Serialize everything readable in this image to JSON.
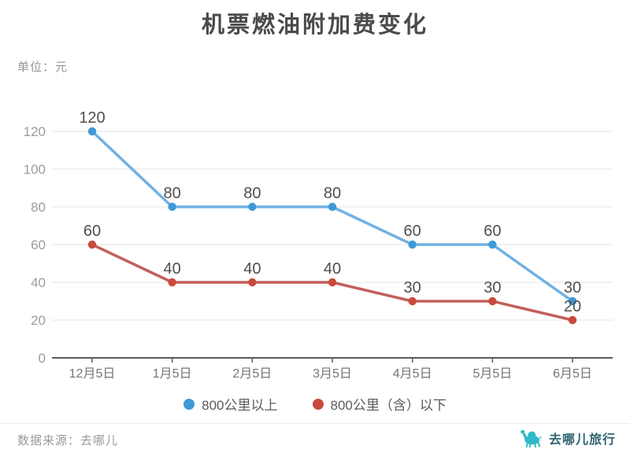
{
  "title": "机票燃油附加费变化",
  "unit_label": "单位：元",
  "footer": {
    "source_label": "数据来源：去哪儿",
    "brand_label": "去哪儿旅行",
    "brand_icon": "camel-icon"
  },
  "colors": {
    "title_text": "#4a4a4a",
    "grid_line": "#e5e5e5",
    "axis_line": "#5a5a5a",
    "y_tick_label": "#9c9c9c",
    "x_tick_label": "#757575",
    "data_label": "#4f4f4f",
    "blue_line": "#72b1e2",
    "blue_marker": "#3e9ad8",
    "red_line": "#c2605b",
    "red_marker": "#c94a3d",
    "brand_teal": "#2fb9c7",
    "brand_text": "#2f6472"
  },
  "chart_data": {
    "type": "line",
    "title": "机票燃油附加费变化",
    "ylabel": "单位：元",
    "categories": [
      "12月5日",
      "1月5日",
      "2月5日",
      "3月5日",
      "4月5日",
      "5月5日",
      "6月5日"
    ],
    "series": [
      {
        "name": "800公里以上",
        "values": [
          120,
          80,
          80,
          80,
          60,
          60,
          30
        ],
        "line_color": "#72b1e2",
        "marker_color": "#3e9ad8"
      },
      {
        "name": "800公里（含）以下",
        "values": [
          60,
          40,
          40,
          40,
          30,
          30,
          20
        ],
        "line_color": "#c2605b",
        "marker_color": "#c94a3d"
      }
    ],
    "ylim": [
      0,
      120
    ],
    "ytick_step": 20,
    "yticks": [
      0,
      20,
      40,
      60,
      80,
      100,
      120
    ],
    "grid": true,
    "point_labels_shown": true,
    "legend_position": "bottom"
  }
}
